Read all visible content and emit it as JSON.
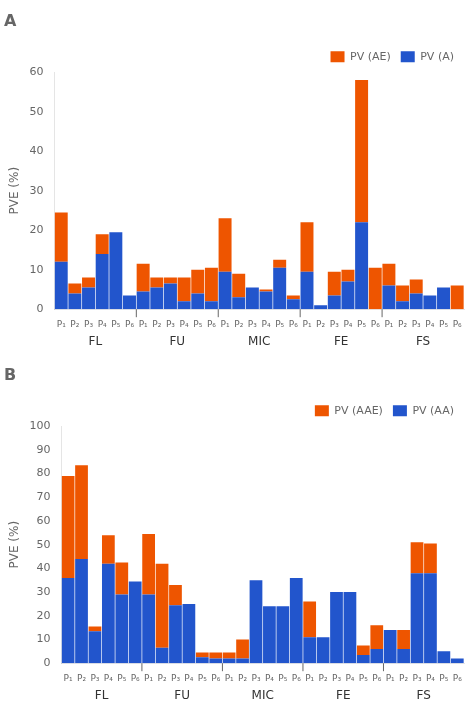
{
  "chart_data": [
    {
      "type": "bar",
      "title": "A",
      "y_label": "PVE (%)",
      "categories": [
        "P₁",
        "P₂",
        "P₃",
        "P₄",
        "P₅",
        "P₆",
        "P₁",
        "P₂",
        "P₃",
        "P₄",
        "P₅",
        "P₆",
        "P₁",
        "P₂",
        "P₃",
        "P₄",
        "P₅",
        "P₆",
        "P₁",
        "P₂",
        "P₃",
        "P₄",
        "P₅",
        "P₆",
        "P₁",
        "P₂",
        "P₃",
        "P₄",
        "P₅",
        "P₆"
      ],
      "groups": [
        "FL",
        "FU",
        "MIC",
        "FE",
        "FS"
      ],
      "series": [
        {
          "name": "PV (A)",
          "color": "#2255CC",
          "values": [
            12.0,
            4.0,
            5.5,
            14.0,
            19.5,
            3.5,
            4.5,
            5.5,
            6.5,
            2.0,
            4.0,
            2.0,
            9.5,
            3.0,
            5.5,
            4.5,
            10.5,
            2.5,
            9.5,
            1.0,
            3.5,
            7.0,
            22.0,
            0.0,
            6.0,
            2.0,
            4.0,
            3.5,
            5.5,
            0.0
          ]
        },
        {
          "name": "PV (AE)",
          "color": "#EE5500",
          "values": [
            12.5,
            2.5,
            2.5,
            5.0,
            0.0,
            0.0,
            7.0,
            2.5,
            1.5,
            6.0,
            6.0,
            8.5,
            13.5,
            6.0,
            0.0,
            0.5,
            2.0,
            1.0,
            12.5,
            0.0,
            6.0,
            3.0,
            36.0,
            10.5,
            5.5,
            4.0,
            3.5,
            0.0,
            0.0,
            6.0
          ]
        }
      ],
      "ylim": [
        0,
        60
      ],
      "yticks": [
        0,
        10,
        20,
        30,
        40,
        50,
        60
      ],
      "stacked": true,
      "grid": false,
      "legend": "upper right"
    },
    {
      "type": "bar",
      "title": "B",
      "y_label": "PVE (%)",
      "categories": [
        "P₁",
        "P₂",
        "P₃",
        "P₄",
        "P₅",
        "P₆",
        "P₁",
        "P₂",
        "P₃",
        "P₄",
        "P₅",
        "P₆",
        "P₁",
        "P₂",
        "P₃",
        "P₄",
        "P₅",
        "P₆",
        "P₁",
        "P₂",
        "P₃",
        "P₄",
        "P₅",
        "P₆",
        "P₁",
        "P₂",
        "P₃",
        "P₄",
        "P₅",
        "P₆"
      ],
      "groups": [
        "FL",
        "FU",
        "MIC",
        "FE",
        "FS"
      ],
      "series": [
        {
          "name": "PV (AA)",
          "color": "#2255CC",
          "values": [
            36.0,
            44.0,
            13.5,
            42.0,
            29.0,
            34.5,
            29.0,
            6.5,
            24.5,
            25.0,
            2.5,
            2.0,
            2.0,
            2.0,
            35.0,
            24.0,
            24.0,
            36.0,
            11.0,
            11.0,
            30.0,
            30.0,
            3.5,
            6.0,
            14.0,
            6.0,
            38.0,
            38.0,
            5.0,
            2.0
          ]
        },
        {
          "name": "PV (AAE)",
          "color": "#EE5500",
          "values": [
            43.0,
            39.5,
            2.0,
            12.0,
            13.5,
            0.0,
            25.5,
            35.5,
            8.5,
            0.0,
            2.0,
            2.5,
            2.5,
            8.0,
            0.0,
            0.0,
            0.0,
            0.0,
            15.0,
            0.0,
            0.0,
            0.0,
            4.0,
            10.0,
            0.0,
            8.0,
            13.0,
            12.5,
            0.0,
            0.0
          ]
        }
      ],
      "ylim": [
        0,
        100
      ],
      "yticks": [
        0,
        10,
        20,
        30,
        40,
        50,
        60,
        70,
        80,
        90,
        100
      ],
      "stacked": true,
      "grid": false,
      "legend": "upper right"
    }
  ]
}
